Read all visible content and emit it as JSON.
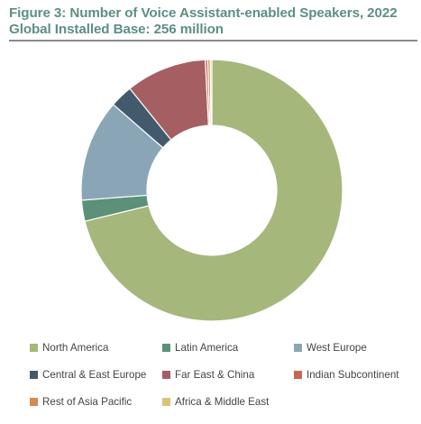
{
  "header": {
    "title_line1": "Figure 3: Number of Voice Assistant-enabled Speakers, 2022",
    "title_line2": "Global Installed Base: 256 million"
  },
  "chart_data": {
    "type": "donut",
    "unit": "share of global installed base (%)",
    "legend_position": "bottom",
    "series": [
      {
        "name": "North America",
        "value": 71.2,
        "color": "#a5b77b"
      },
      {
        "name": "Latin America",
        "value": 2.6,
        "color": "#5c9079"
      },
      {
        "name": "West Europe",
        "value": 12.6,
        "color": "#8aa6b6"
      },
      {
        "name": "Central & East Europe",
        "value": 2.8,
        "color": "#435a6c"
      },
      {
        "name": "Far East & China",
        "value": 10.0,
        "color": "#a55f62"
      },
      {
        "name": "Indian Subcontinent",
        "value": 0.3,
        "color": "#c46653"
      },
      {
        "name": "Rest of Asia Pacific",
        "value": 0.3,
        "color": "#d48a55"
      },
      {
        "name": "Africa & Middle East",
        "value": 0.2,
        "color": "#d9c27a"
      }
    ]
  }
}
